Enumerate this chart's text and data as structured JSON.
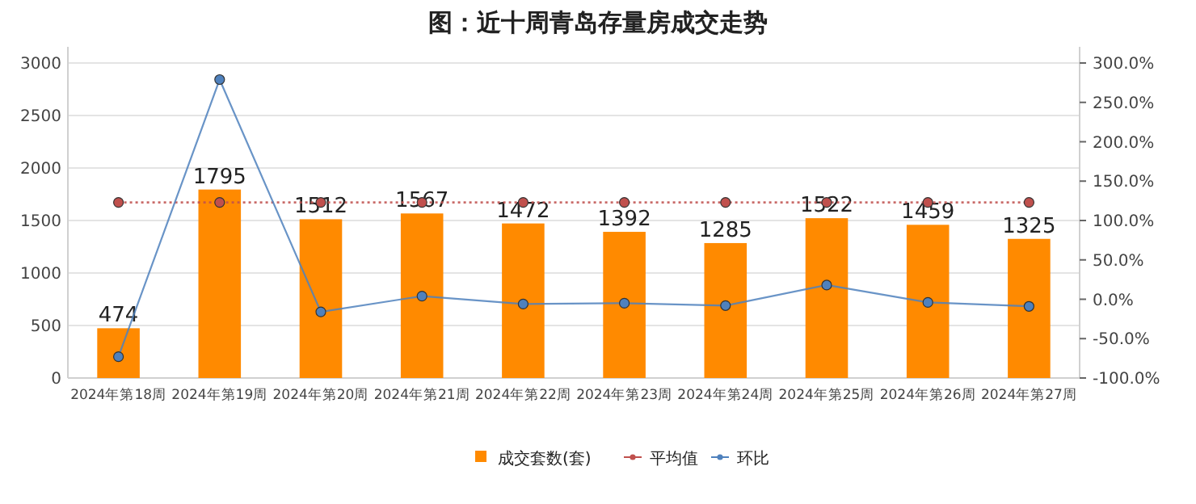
{
  "chart_data": {
    "type": "bar",
    "title": "图：近十周青岛存量房成交走势",
    "categories": [
      "2024年第18周",
      "2024年第19周",
      "2024年第20周",
      "2024年第21周",
      "2024年第22周",
      "2024年第23周",
      "2024年第24周",
      "2024年第25周",
      "2024年第26周",
      "2024年第27周"
    ],
    "series": [
      {
        "name": "成交套数(套)",
        "color": "#ff8a00",
        "values": [
          474,
          1795,
          1512,
          1567,
          1472,
          1392,
          1285,
          1522,
          1459,
          1325
        ],
        "data_labels": true
      },
      {
        "name": "平均值",
        "type": "line",
        "axis": "y2",
        "color": "#c0504d",
        "line_style": "dotted",
        "marker": "circle",
        "values": [
          123,
          123,
          123,
          123,
          123,
          123,
          123,
          123,
          123,
          123
        ]
      },
      {
        "name": "环比",
        "type": "line",
        "axis": "y2",
        "color": "#4f81bd",
        "line_style": "solid",
        "marker": "circle",
        "values": [
          -73,
          279,
          -16,
          4,
          -6,
          -5,
          -8,
          18,
          -4,
          -9
        ]
      }
    ],
    "ylim": [
      0,
      3000
    ],
    "yticks": [
      0,
      500,
      1000,
      1500,
      2000,
      2500,
      3000
    ],
    "y2lim": [
      -100,
      300
    ],
    "y2ticks": [
      {
        "value": -100,
        "label": "-100.0%"
      },
      {
        "value": -50,
        "label": "-50.0%"
      },
      {
        "value": 0,
        "label": "0.0%"
      },
      {
        "value": 50,
        "label": "50.0%"
      },
      {
        "value": 100,
        "label": "100.0%"
      },
      {
        "value": 150,
        "label": "150.0%"
      },
      {
        "value": 200,
        "label": "200.0%"
      },
      {
        "value": 250,
        "label": "250.0%"
      },
      {
        "value": 300,
        "label": "300.0%"
      }
    ],
    "grid": "y",
    "legend": "bottom"
  }
}
